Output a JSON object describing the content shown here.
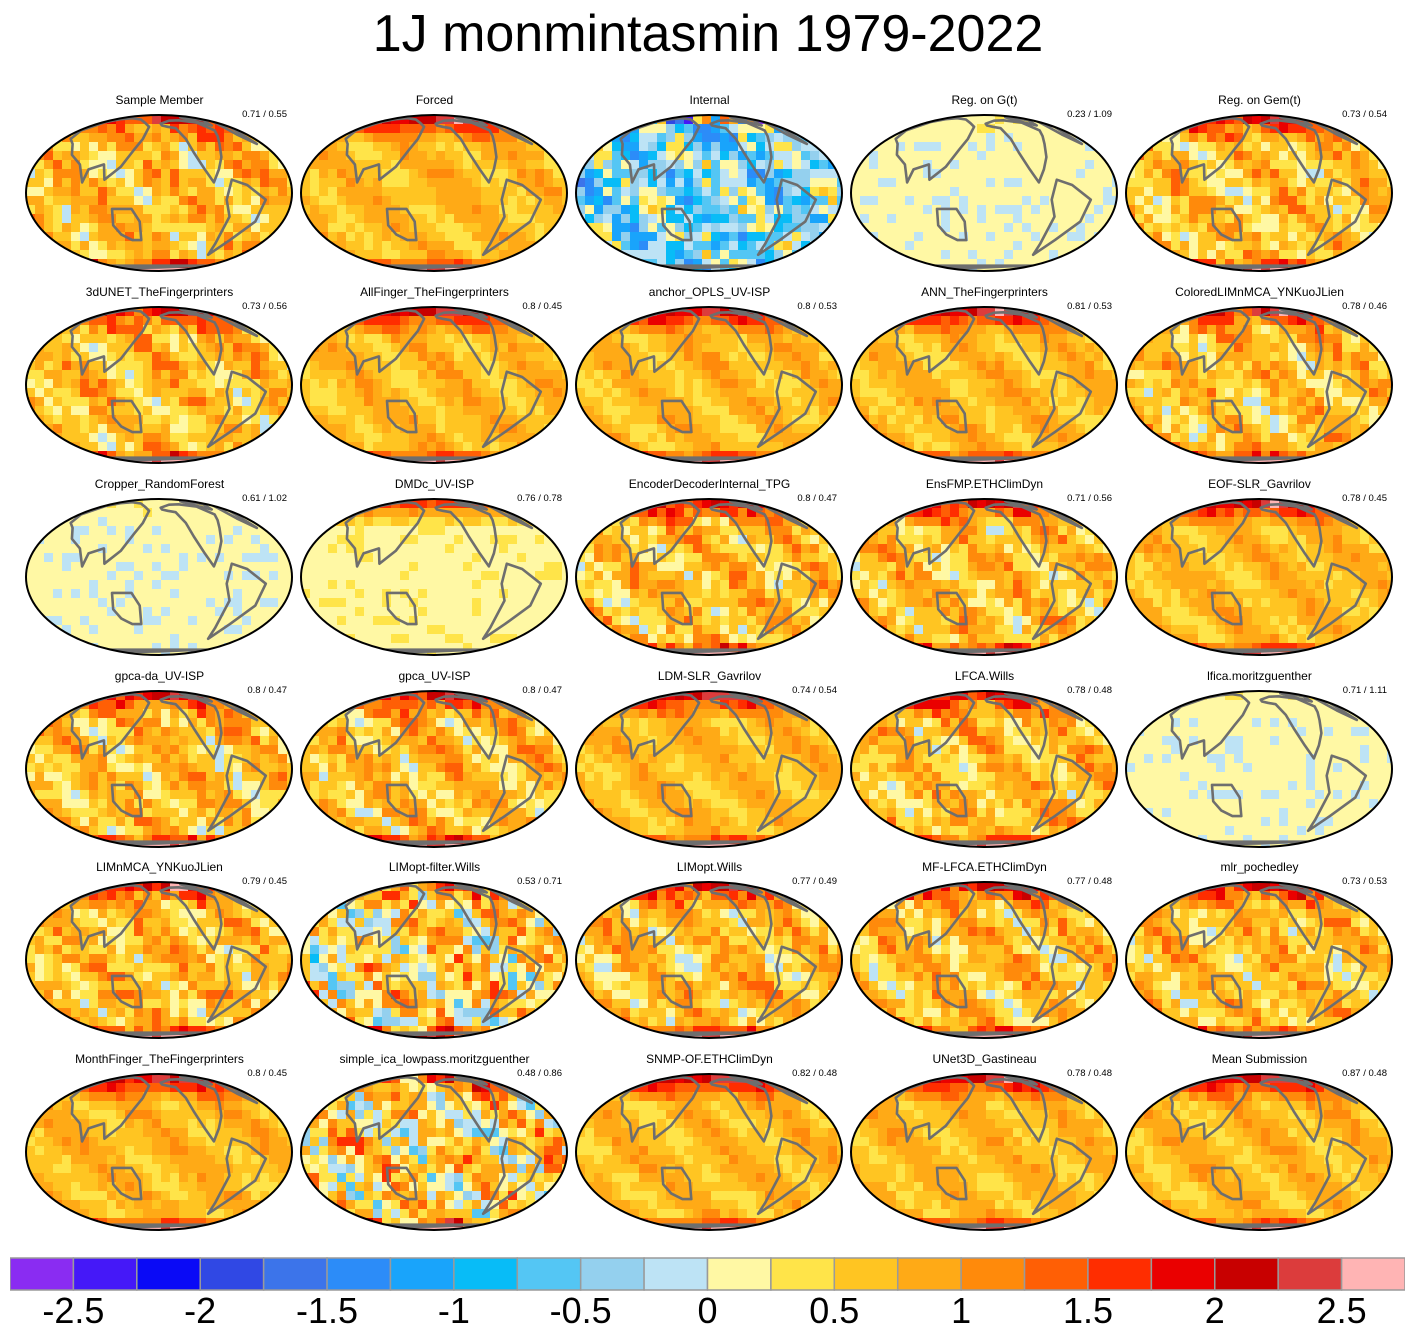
{
  "title": "1J monmintasmin 1979-2022",
  "palette": {
    "levels": [
      "#8a2cf2",
      "#4518f8",
      "#0a0af6",
      "#3048e4",
      "#3c74ea",
      "#2c8cf8",
      "#19a4fb",
      "#08bcf7",
      "#54c6f4",
      "#94d0ee",
      "#bde3f5",
      "#fff8a4",
      "#ffe449",
      "#ffc522",
      "#ffaa16",
      "#ff8a0b",
      "#ff5f05",
      "#ff2d00",
      "#ea0000",
      "#c80000",
      "#dc3c3c",
      "#ffb4b4"
    ],
    "land": "#6e6e6e",
    "outline": "#000000"
  },
  "chart_data": {
    "type": "heatmap",
    "title": "1J monmintasmin 1979-2022",
    "colorbar": {
      "min": -2.75,
      "max": 2.75,
      "step": 0.25,
      "tick_values": [
        -2.5,
        -2,
        -1.5,
        -1,
        -0.5,
        0,
        0.5,
        1,
        1.5,
        2,
        2.5
      ],
      "tick_labels": [
        "-2.5",
        "-2",
        "-1.5",
        "-1",
        "-0.5",
        "0",
        "0.5",
        "1",
        "1.5",
        "2",
        "2.5"
      ]
    },
    "panels": [
      {
        "name": "Sample Member",
        "score": "0.71 / 0.55",
        "pattern": "mixed"
      },
      {
        "name": "Forced",
        "score": "",
        "pattern": "forced"
      },
      {
        "name": "Internal",
        "score": "",
        "pattern": "cold"
      },
      {
        "name": "Reg. on G(t)",
        "score": "0.23 / 1.09",
        "pattern": "pale"
      },
      {
        "name": "Reg. on Gem(t)",
        "score": "0.73 / 0.54",
        "pattern": "mixed"
      },
      {
        "name": "3dUNET_TheFingerprinters",
        "score": "0.73 / 0.56",
        "pattern": "mixed"
      },
      {
        "name": "AllFinger_TheFingerprinters",
        "score": "0.8 / 0.45",
        "pattern": "forced"
      },
      {
        "name": "anchor_OPLS_UV-ISP",
        "score": "0.8 / 0.53",
        "pattern": "forced"
      },
      {
        "name": "ANN_TheFingerprinters",
        "score": "0.81 / 0.53",
        "pattern": "forced"
      },
      {
        "name": "ColoredLIMnMCA_YNKuoJLien",
        "score": "0.78 / 0.46",
        "pattern": "mixed"
      },
      {
        "name": "Cropper_RandomForest",
        "score": "0.61 / 1.02",
        "pattern": "pale"
      },
      {
        "name": "DMDc_UV-ISP",
        "score": "0.76 / 0.78",
        "pattern": "light"
      },
      {
        "name": "EncoderDecoderInternal_TPG",
        "score": "0.8 / 0.47",
        "pattern": "mixed"
      },
      {
        "name": "EnsFMP.ETHClimDyn",
        "score": "0.71 / 0.56",
        "pattern": "mixed"
      },
      {
        "name": "EOF-SLR_Gavrilov",
        "score": "0.78 / 0.45",
        "pattern": "forced"
      },
      {
        "name": "gpca-da_UV-ISP",
        "score": "0.8 / 0.47",
        "pattern": "mixed"
      },
      {
        "name": "gpca_UV-ISP",
        "score": "0.8 / 0.47",
        "pattern": "mixed"
      },
      {
        "name": "LDM-SLR_Gavrilov",
        "score": "0.74 / 0.54",
        "pattern": "forced"
      },
      {
        "name": "LFCA.Wills",
        "score": "0.78 / 0.48",
        "pattern": "mixed"
      },
      {
        "name": "lfica.moritzguenther",
        "score": "0.71 / 1.11",
        "pattern": "pale"
      },
      {
        "name": "LIMnMCA_YNKuoJLien",
        "score": "0.79 / 0.45",
        "pattern": "mixed"
      },
      {
        "name": "LIMopt-filter.Wills",
        "score": "0.53 / 0.71",
        "pattern": "noisy"
      },
      {
        "name": "LIMopt.Wills",
        "score": "0.77 / 0.49",
        "pattern": "mixed"
      },
      {
        "name": "MF-LFCA.ETHClimDyn",
        "score": "0.77 / 0.48",
        "pattern": "mixed"
      },
      {
        "name": "mlr_pochedley",
        "score": "0.73 / 0.53",
        "pattern": "mixed"
      },
      {
        "name": "MonthFinger_TheFingerprinters",
        "score": "0.8 / 0.45",
        "pattern": "forced"
      },
      {
        "name": "simple_ica_lowpass.moritzguenther",
        "score": "0.48 / 0.86",
        "pattern": "noisy"
      },
      {
        "name": "SNMP-OF.ETHClimDyn",
        "score": "0.82 / 0.48",
        "pattern": "forced"
      },
      {
        "name": "UNet3D_Gastineau",
        "score": "0.78 / 0.48",
        "pattern": "forced"
      },
      {
        "name": "Mean Submission",
        "score": "0.87 / 0.48",
        "pattern": "forced"
      }
    ]
  }
}
